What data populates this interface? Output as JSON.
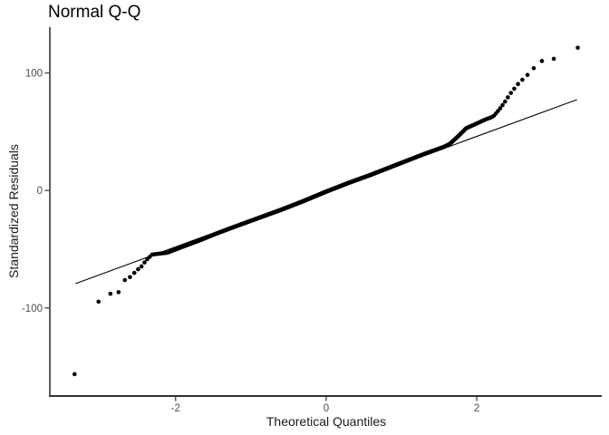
{
  "chart_data": {
    "type": "scatter",
    "title": "Normal Q-Q",
    "xlabel": "Theoretical Quantiles",
    "ylabel": "Standardized Residuals",
    "xticks": [
      -2,
      0,
      2
    ],
    "yticks": [
      -100,
      0,
      100
    ],
    "xlim": [
      -3.67,
      3.66
    ],
    "ylim": [
      -175,
      139
    ],
    "grid": "off",
    "legend": "none",
    "background_color": "#ffffff",
    "point_color": "#000000",
    "point_radius": 2.3,
    "n_points": 1200,
    "axis_line_color": "#333333",
    "tick_label_color": "#4d4d4d",
    "reference_line": {
      "x1": -3.33,
      "y1": -79.3,
      "x2": 3.33,
      "y2": 77.3,
      "color": "#000000",
      "width": 1.1
    },
    "qq_curve": [
      [
        -3.36,
        -160
      ],
      [
        -3.03,
        -95
      ],
      [
        -2.87,
        -88
      ],
      [
        -2.76,
        -87
      ],
      [
        -2.68,
        -76.5
      ],
      [
        -2.61,
        -74
      ],
      [
        -2.53,
        -69
      ],
      [
        -2.48,
        -66
      ],
      [
        -2.44,
        -64
      ],
      [
        -2.4,
        -60
      ],
      [
        -2.31,
        -54.5
      ],
      [
        -2.11,
        -53
      ],
      [
        -1.93,
        -48.5
      ],
      [
        -1.68,
        -42.5
      ],
      [
        -1.45,
        -36.5
      ],
      [
        -1.2,
        -30.5
      ],
      [
        -0.9,
        -23.5
      ],
      [
        -0.6,
        -16.5
      ],
      [
        -0.3,
        -9
      ],
      [
        0,
        -1
      ],
      [
        0.3,
        6.5
      ],
      [
        0.6,
        13.5
      ],
      [
        0.84,
        19.5
      ],
      [
        1.1,
        26
      ],
      [
        1.3,
        31
      ],
      [
        1.56,
        37
      ],
      [
        1.64,
        39.5
      ],
      [
        1.75,
        46
      ],
      [
        1.86,
        53
      ],
      [
        2.0,
        57
      ],
      [
        2.1,
        60
      ],
      [
        2.22,
        63
      ],
      [
        2.3,
        69
      ],
      [
        2.38,
        76
      ],
      [
        2.44,
        82
      ],
      [
        2.49,
        86
      ],
      [
        2.54,
        90
      ],
      [
        2.58,
        93
      ],
      [
        2.64,
        96
      ],
      [
        2.74,
        103
      ],
      [
        2.85,
        110
      ],
      [
        3.02,
        112
      ],
      [
        3.32,
        121
      ],
      [
        3.36,
        122
      ]
    ],
    "notable_points": {
      "low_outlier": [
        -3.34,
        -160
      ],
      "highest_point": [
        3.32,
        121
      ]
    }
  }
}
